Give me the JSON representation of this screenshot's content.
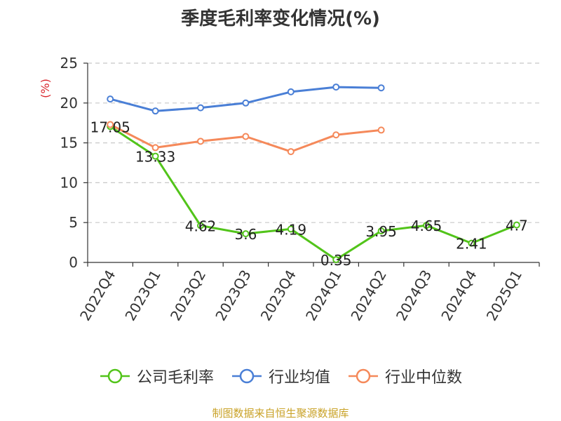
{
  "source_text": "制图数据来自恒生聚源数据库",
  "chart_data": {
    "type": "line",
    "title": "季度毛利率变化情况(%)",
    "ylabel": "(%)",
    "xlabel": "",
    "ylim": [
      0,
      25
    ],
    "yticks": [
      0,
      5,
      10,
      15,
      20,
      25
    ],
    "grid": true,
    "legend_position": "bottom",
    "categories": [
      "2022Q4",
      "2023Q1",
      "2023Q2",
      "2023Q3",
      "2023Q4",
      "2024Q1",
      "2024Q2",
      "2024Q3",
      "2024Q4",
      "2025Q1"
    ],
    "series": [
      {
        "name": "公司毛利率",
        "color": "#52c41a",
        "show_labels": true,
        "labels": [
          "17.05",
          "13.33",
          "4.62",
          "3.6",
          "4.19",
          "0.35",
          "3.95",
          "4.65",
          "2.41",
          "4.7"
        ],
        "values": [
          17.05,
          13.33,
          4.62,
          3.6,
          4.19,
          0.35,
          3.95,
          4.65,
          2.41,
          4.7
        ]
      },
      {
        "name": "行业均值",
        "color": "#4a7fd6",
        "show_labels": false,
        "values": [
          20.5,
          19.0,
          19.4,
          20.0,
          21.4,
          22.0,
          21.9,
          null,
          null,
          null
        ]
      },
      {
        "name": "行业中位数",
        "color": "#f5895a",
        "show_labels": false,
        "values": [
          17.3,
          14.4,
          15.2,
          15.8,
          13.9,
          16.0,
          16.6,
          null,
          null,
          null
        ]
      }
    ]
  }
}
